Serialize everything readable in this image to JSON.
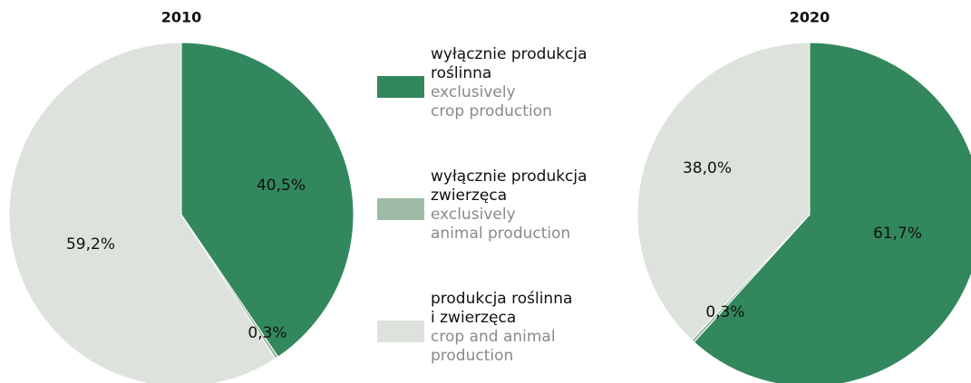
{
  "chart_data": [
    {
      "type": "pie",
      "title": "2010",
      "values": [
        40.5,
        0.3,
        59.2
      ],
      "value_labels": [
        "40,5%",
        "0,3%",
        "59,2%"
      ],
      "colors": [
        "#33875c",
        "#9dbba4",
        "#dde3dc"
      ]
    },
    {
      "type": "pie",
      "title": "2020",
      "values": [
        61.7,
        0.3,
        38.0
      ],
      "value_labels": [
        "61,7%",
        "0,3%",
        "38,0%"
      ],
      "colors": [
        "#33875c",
        "#9dbba4",
        "#dde3dc"
      ]
    }
  ],
  "legend": [
    {
      "lines_pl": [
        "wyłącznie produkcja",
        "roślinna"
      ],
      "lines_en": [
        "exclusively",
        "crop production"
      ],
      "color": "#33875c"
    },
    {
      "lines_pl": [
        "wyłącznie produkcja",
        "zwierzęca"
      ],
      "lines_en": [
        "exclusively",
        "animal production"
      ],
      "color": "#9dbba4"
    },
    {
      "lines_pl": [
        "produkcja roślinna",
        "i zwierzęca"
      ],
      "lines_en": [
        "crop and animal",
        "production"
      ],
      "color": "#dde3dc"
    }
  ]
}
